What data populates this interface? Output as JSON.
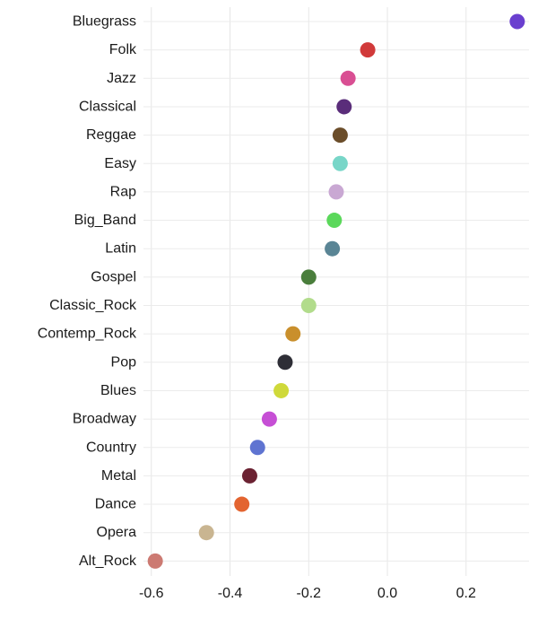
{
  "chart_data": {
    "type": "scatter",
    "title": "",
    "xlabel": "",
    "ylabel": "",
    "categories": [
      "Bluegrass",
      "Folk",
      "Jazz",
      "Classical",
      "Reggae",
      "Easy",
      "Rap",
      "Big_Band",
      "Latin",
      "Gospel",
      "Classic_Rock",
      "Contemp_Rock",
      "Pop",
      "Blues",
      "Broadway",
      "Country",
      "Metal",
      "Dance",
      "Opera",
      "Alt_Rock"
    ],
    "values": [
      0.33,
      -0.05,
      -0.1,
      -0.11,
      -0.12,
      -0.12,
      -0.13,
      -0.135,
      -0.14,
      -0.2,
      -0.2,
      -0.24,
      -0.26,
      -0.27,
      -0.3,
      -0.33,
      -0.35,
      -0.37,
      -0.46,
      -0.59
    ],
    "colors": [
      "#6a3fcf",
      "#d13a3a",
      "#d94f93",
      "#5a2d7a",
      "#6b4d2a",
      "#78d6c8",
      "#c9a8d3",
      "#5bd85b",
      "#5a8595",
      "#4a7e3c",
      "#b2dc8c",
      "#c98f2c",
      "#2e2e36",
      "#cfd93a",
      "#c64fd5",
      "#5f74d1",
      "#6b2232",
      "#e36430",
      "#c9b591",
      "#cc7a72"
    ],
    "xlim": [
      -0.62,
      0.36
    ],
    "xticks": [
      -0.6,
      -0.4,
      -0.2,
      0.0,
      0.2
    ],
    "xtick_labels": [
      "-0.6",
      "-0.4",
      "-0.2",
      "0.0",
      "0.2"
    ],
    "grid": true,
    "legend": "none"
  }
}
